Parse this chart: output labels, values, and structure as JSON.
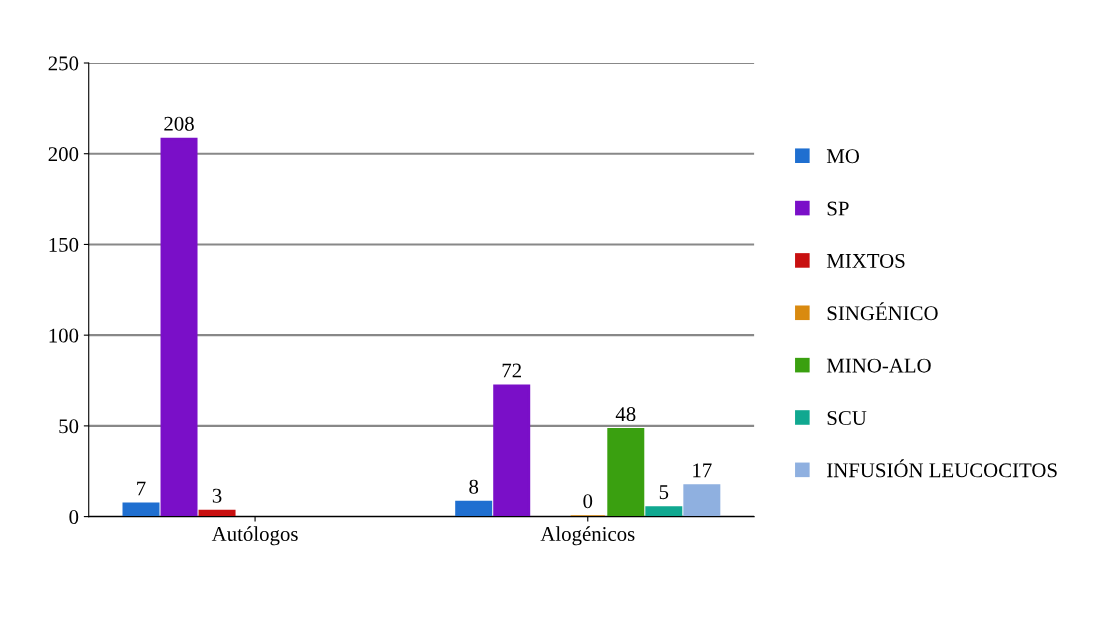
{
  "chart_data": {
    "type": "bar",
    "categories": [
      "Autólogos",
      "Alogénicos"
    ],
    "series": [
      {
        "name": "MO",
        "color": "#1f6fd0",
        "values": [
          7,
          8
        ]
      },
      {
        "name": "SP",
        "color": "#7a0fc8",
        "values": [
          208,
          72
        ]
      },
      {
        "name": "MIXTOS",
        "color": "#c81010",
        "values": [
          3,
          null
        ]
      },
      {
        "name": "SINGÉNICO",
        "color": "#d98a10",
        "values": [
          null,
          0
        ]
      },
      {
        "name": "MINO-ALO",
        "color": "#3aa010",
        "values": [
          null,
          48
        ]
      },
      {
        "name": "SCU",
        "color": "#10a890",
        "values": [
          null,
          5
        ]
      },
      {
        "name": "INFUSIÓN LEUCOCITOS",
        "color": "#8fb0e0",
        "values": [
          null,
          17
        ]
      }
    ],
    "ylim": [
      0,
      250
    ],
    "yticks": [
      0,
      50,
      100,
      150,
      200,
      250
    ],
    "grid": "y",
    "legend": "right",
    "data_labels": true
  }
}
